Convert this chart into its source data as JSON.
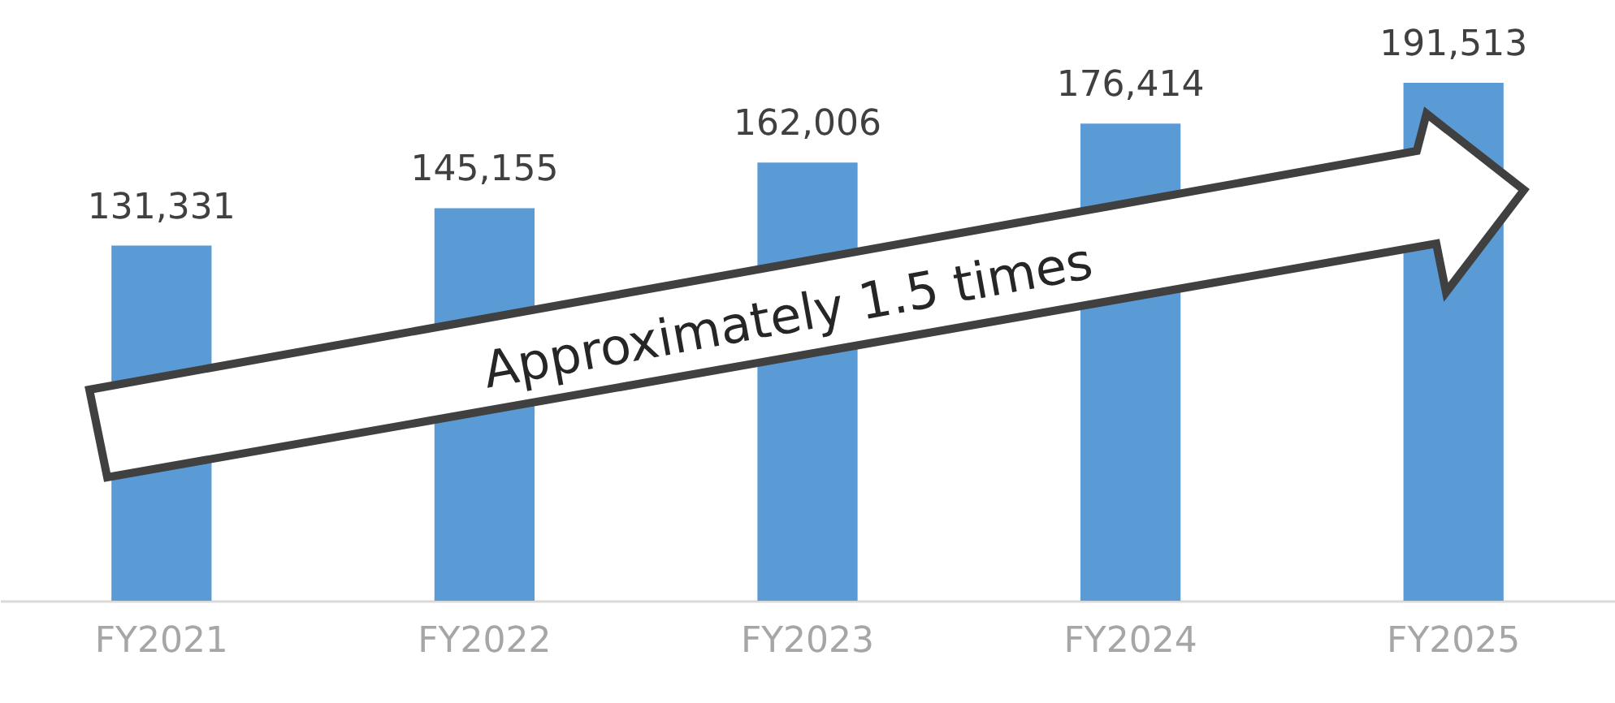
{
  "chart_data": {
    "type": "bar",
    "categories": [
      "FY2021",
      "FY2022",
      "FY2023",
      "FY2024",
      "FY2025"
    ],
    "values": [
      131331,
      145155,
      162006,
      176414,
      191513
    ],
    "color": "#5b9bd5",
    "value_labels": [
      "131,331",
      "145,155",
      "162,006",
      "176,414",
      "191,513"
    ],
    "annotations": [
      "Approximately 1.5 times"
    ]
  }
}
